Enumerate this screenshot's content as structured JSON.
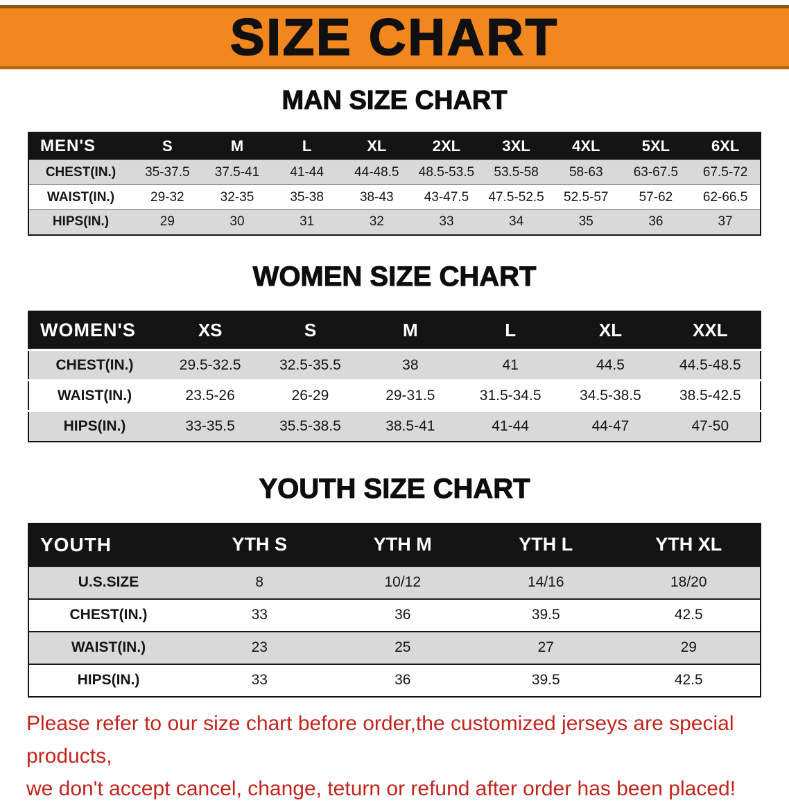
{
  "banner": {
    "title": "SIZE CHART"
  },
  "colors": {
    "banner_orange": "#F0871F",
    "header_black": "#141414",
    "row_gray": "#D9D9D9",
    "disclaimer_red": "#C3241C"
  },
  "chart_data": [
    {
      "type": "table",
      "title": "MAN SIZE CHART",
      "header": [
        "MEN'S",
        "S",
        "M",
        "L",
        "XL",
        "2XL",
        "3XL",
        "4XL",
        "5XL",
        "6XL"
      ],
      "rows": [
        [
          "CHEST(IN.)",
          "35-37.5",
          "37.5-41",
          "41-44",
          "44-48.5",
          "48.5-53.5",
          "53.5-58",
          "58-63",
          "63-67.5",
          "67.5-72"
        ],
        [
          "WAIST(IN.)",
          "29-32",
          "32-35",
          "35-38",
          "38-43",
          "43-47.5",
          "47.5-52.5",
          "52.5-57",
          "57-62",
          "62-66.5"
        ],
        [
          "HIPS(IN.)",
          "29",
          "30",
          "31",
          "32",
          "33",
          "34",
          "35",
          "36",
          "37"
        ]
      ]
    },
    {
      "type": "table",
      "title": "WOMEN SIZE CHART",
      "header": [
        "WOMEN'S",
        "XS",
        "S",
        "M",
        "L",
        "XL",
        "XXL"
      ],
      "rows": [
        [
          "CHEST(IN.)",
          "29.5-32.5",
          "32.5-35.5",
          "38",
          "41",
          "44.5",
          "44.5-48.5"
        ],
        [
          "WAIST(IN.)",
          "23.5-26",
          "26-29",
          "29-31.5",
          "31.5-34.5",
          "34.5-38.5",
          "38.5-42.5"
        ],
        [
          "HIPS(IN.)",
          "33-35.5",
          "35.5-38.5",
          "38.5-41",
          "41-44",
          "44-47",
          "47-50"
        ]
      ]
    },
    {
      "type": "table",
      "title": "YOUTH SIZE CHART",
      "header": [
        "YOUTH",
        "YTH S",
        "YTH M",
        "YTH L",
        "YTH XL"
      ],
      "rows": [
        [
          "U.S.SIZE",
          "8",
          "10/12",
          "14/16",
          "18/20"
        ],
        [
          "CHEST(IN.)",
          "33",
          "36",
          "39.5",
          "42.5"
        ],
        [
          "WAIST(IN.)",
          "23",
          "25",
          "27",
          "29"
        ],
        [
          "HIPS(IN.)",
          "33",
          "36",
          "39.5",
          "42.5"
        ]
      ]
    }
  ],
  "disclaimer": {
    "line1": "Please refer to our size chart before order,the customized jerseys are special products,",
    "line2": "we don't accept cancel, change, teturn or refund after order has been placed!"
  }
}
